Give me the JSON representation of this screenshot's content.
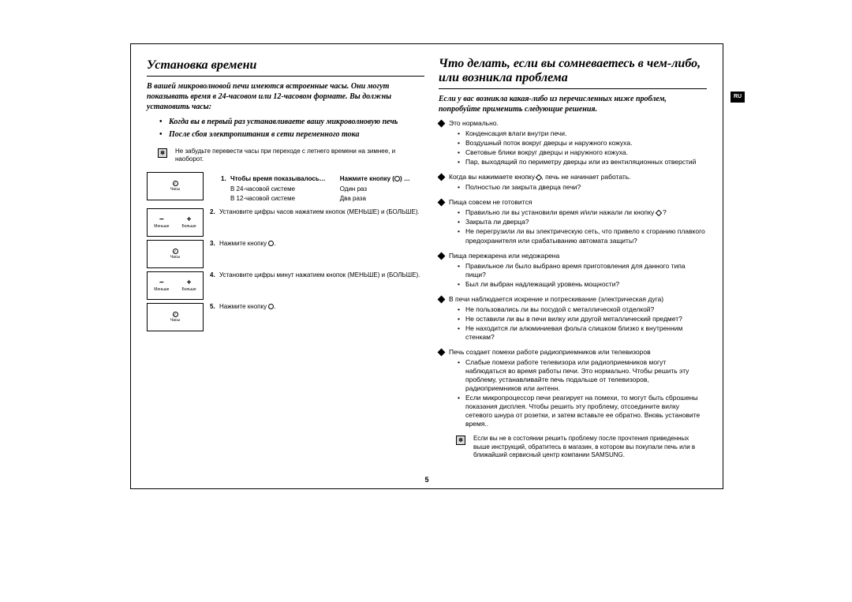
{
  "lang_tab": "RU",
  "page_number": "5",
  "left": {
    "heading": "Установка времени",
    "intro": "В вашей микроволновой печи имеются встроенные часы. Они могут показывать время в 24-часовом или 12-часовом формате. Вы должны установить часы:",
    "bullets": [
      "Когда вы в первый раз устанавливаете вашу микроволновую печь",
      "После сбоя электропитания в сети переменного тока"
    ],
    "tip_badge": "✽",
    "tip_text": "Не забудьте перевести часы при переходе с летнего времени на зимнее, и наоборот.",
    "panels": {
      "clock_label": "Часы",
      "less_label": "Меньше",
      "more_label": "Больше"
    },
    "steps": {
      "s1_head1": "Чтобы время показывалось…",
      "s1_head2": "Нажмите кнопку (",
      "s1_head2_tail": ") …",
      "s1_r1c1": "В 24-часовой системе",
      "s1_r1c2": "Один раз",
      "s1_r2c1": "В 12-часовой системе",
      "s1_r2c2": "Два раза",
      "s2": "Установите цифры часов нажатием кнопок (МЕНЬШЕ) и (БОЛЬШЕ).",
      "s3_pre": "Нажмите кнопку ",
      "s3_post": ".",
      "s4": "Установите цифры минут нажатием кнопок (МЕНЬШЕ) и (БОЛЬШЕ).",
      "s5_pre": "Нажмите кнопку ",
      "s5_post": "."
    }
  },
  "right": {
    "heading": "Что делать, если вы сомневаетесь в чем-либо, или возникла проблема",
    "intro": "Если у вас возникла какая-либо из перечисленных ниже проблем, попробуйте применить следующие решения.",
    "blocks": [
      {
        "head": "Это нормально.",
        "subs": [
          "Конденсация влаги внутри печи.",
          "Воздушный поток вокруг дверцы и наружного кожуха.",
          "Световые блики вокруг дверцы и наружного кожуха.",
          "Пар, выходящий по периметру дверцы или из вентиляционных отверстий"
        ]
      },
      {
        "head_pre": "Когда вы нажимаете кнопку ",
        "head_post": ", печь не начинает работать.",
        "subs": [
          "Полностью ли закрыта дверца печи?"
        ]
      },
      {
        "head": "Пища совсем не готовится",
        "subs_mixed": [
          {
            "pre": "Правильно ли вы установили время и/или нажали ли кнопку ",
            "post": " ?",
            "diamond": true
          },
          {
            "text": "Закрыта ли дверца?"
          },
          {
            "text": "Не перегрузили ли вы электрическую сеть, что привело к сгоранию плавкого предохранителя или срабатыванию автомата защиты?"
          }
        ]
      },
      {
        "head": "Пища пережарена или недожарена",
        "subs": [
          "Правильное ли было выбрано время приготовления для данного типа пищи?",
          "Был ли выбран надлежащий уровень мощности?"
        ]
      },
      {
        "head": "В печи наблюдается искрение и потрескивание (электрическая дуга)",
        "subs": [
          "Не пользовались ли вы посудой с металлической отделкой?",
          "Не оставили ли вы в печи вилку или другой металлический предмет?",
          "Не находится ли алюминиевая фольга слишком близко к внутренним стенкам?"
        ]
      },
      {
        "head": "Печь создает помехи работе радиоприемников или телевизоров",
        "subs": [
          "Слабые помехи работе телевизора или радиоприемников могут наблюдаться во время работы печи. Это нормально. Чтобы решить эту проблему, устанавливайте печь подальше от телевизоров, радиоприемников или антенн.",
          "Если микропроцессор печи реагирует на помехи, то могут быть сброшены показания дисплея. Чтобы решить эту проблему, отсоедините вилку сетевого шнура от розетки, и затем вставьте ее обратно. Вновь установите время.."
        ]
      }
    ],
    "final_tip_badge": "✽",
    "final_tip": "Если вы не в состоянии решить проблему после прочтения приведенных выше инструкций, обратитесь в магазин, в котором вы покупали печь или в ближайший сервисный центр компании SAMSUNG."
  }
}
